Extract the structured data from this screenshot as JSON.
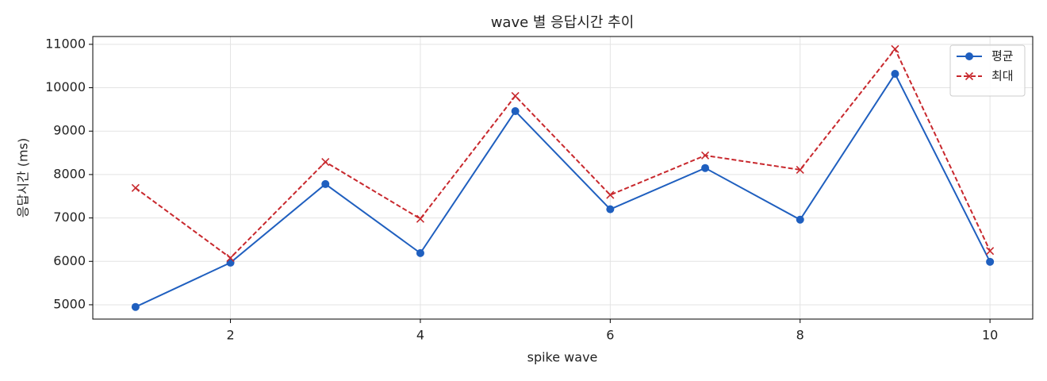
{
  "chart_data": {
    "type": "line",
    "title": "wave 별 응답시간 추이",
    "xlabel": "spike wave",
    "ylabel": "응답시간 (ms)",
    "x": [
      1,
      2,
      3,
      4,
      5,
      6,
      7,
      8,
      9,
      10
    ],
    "series": [
      {
        "name": "평균",
        "color": "#1f5fbf",
        "marker": "circle",
        "linestyle": "solid",
        "values": [
          4950,
          5970,
          7780,
          6190,
          9460,
          7200,
          8150,
          6960,
          10320,
          5990
        ]
      },
      {
        "name": "최대",
        "color": "#c8282d",
        "marker": "x",
        "linestyle": "dashed",
        "values": [
          7690,
          6080,
          8290,
          6980,
          9810,
          7530,
          8440,
          8110,
          10890,
          6240
        ]
      }
    ],
    "xlim": [
      0.55,
      10.45
    ],
    "xticks": [
      2,
      4,
      6,
      8,
      10
    ],
    "ylim": [
      4670,
      11180
    ],
    "yticks": [
      5000,
      6000,
      7000,
      8000,
      9000,
      10000,
      11000
    ],
    "grid": true,
    "legend": "upper right"
  }
}
